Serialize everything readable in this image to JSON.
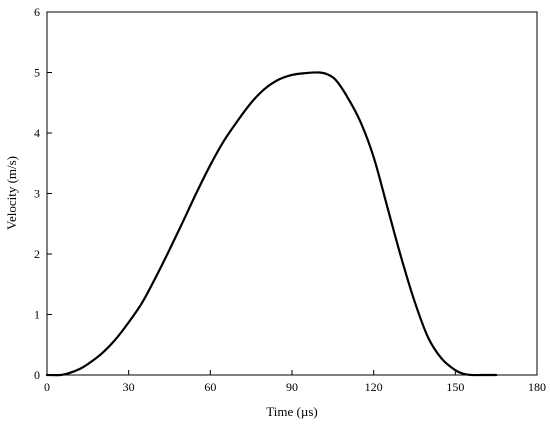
{
  "chart_data": {
    "type": "line",
    "title": "",
    "xlabel": "Time (µs)",
    "ylabel": "Velocity (m/s)",
    "xlim": [
      0,
      180
    ],
    "ylim": [
      0,
      6
    ],
    "xticks": [
      0,
      30,
      60,
      90,
      120,
      150,
      180
    ],
    "yticks": [
      0,
      1,
      2,
      3,
      4,
      5,
      6
    ],
    "grid": false,
    "legend": "none",
    "line_color": "#000000",
    "series": [
      {
        "x": [
          0,
          5,
          8,
          12,
          15,
          20,
          25,
          30,
          35,
          40,
          45,
          50,
          55,
          60,
          65,
          70,
          75,
          80,
          85,
          90,
          95,
          100,
          103,
          106,
          110,
          115,
          120,
          125,
          130,
          135,
          140,
          145,
          150,
          153,
          156,
          160,
          165
        ],
        "y": [
          0,
          0,
          0.03,
          0.1,
          0.18,
          0.35,
          0.58,
          0.87,
          1.2,
          1.62,
          2.07,
          2.54,
          3.02,
          3.47,
          3.87,
          4.2,
          4.5,
          4.73,
          4.88,
          4.96,
          4.99,
          5.0,
          4.97,
          4.88,
          4.62,
          4.2,
          3.6,
          2.78,
          1.96,
          1.22,
          0.62,
          0.27,
          0.08,
          0.02,
          0,
          0,
          0
        ]
      }
    ]
  }
}
